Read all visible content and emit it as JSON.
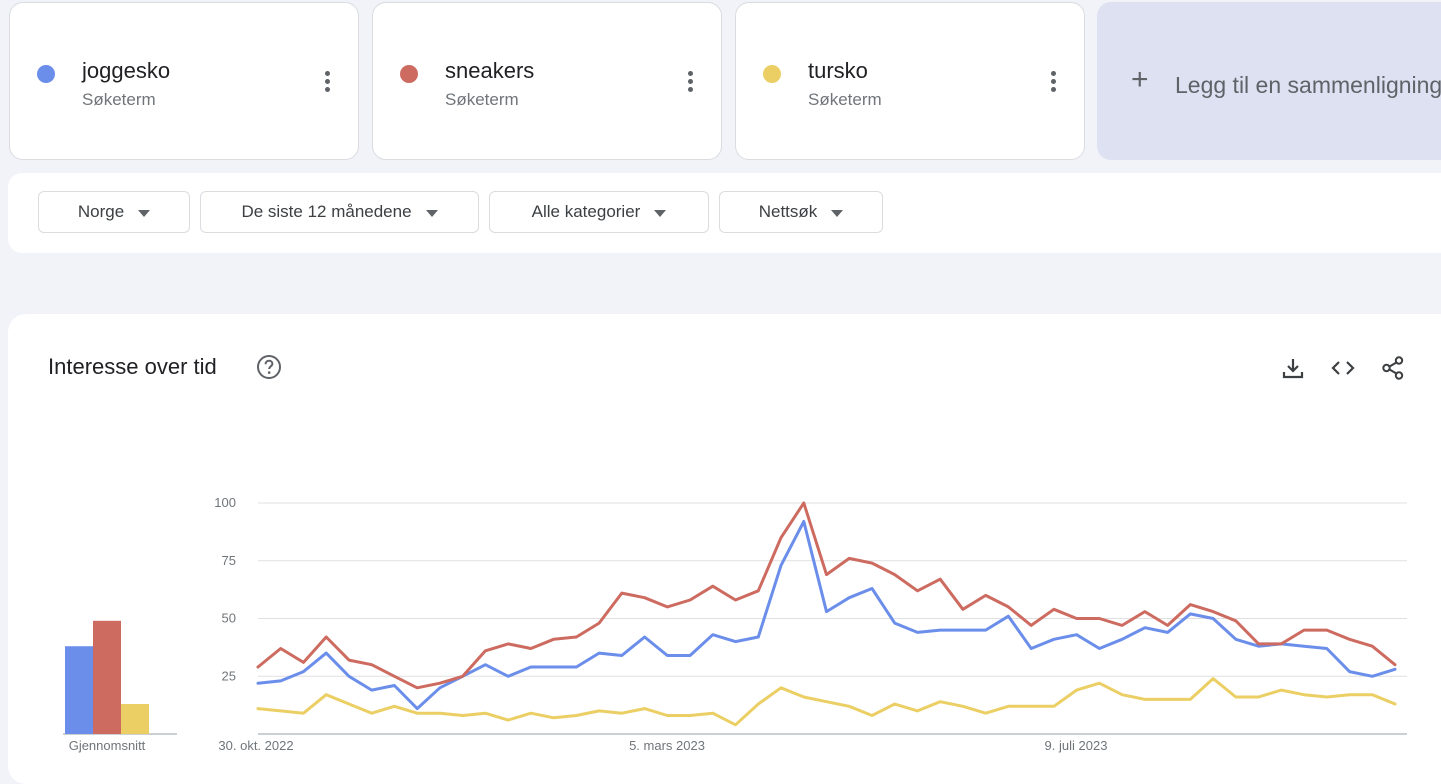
{
  "terms": [
    {
      "name": "joggesko",
      "type": "Søketerm",
      "color": "#6b8eeb"
    },
    {
      "name": "sneakers",
      "type": "Søketerm",
      "color": "#cd6b60"
    },
    {
      "name": "tursko",
      "type": "Søketerm",
      "color": "#ebcf64"
    }
  ],
  "add_comparison": {
    "icon": "plus-icon",
    "label": "Legg til en sammenligning"
  },
  "filters": [
    {
      "label": "Norge"
    },
    {
      "label": "De siste 12 månedene"
    },
    {
      "label": "Alle kategorier"
    },
    {
      "label": "Nettsøk"
    }
  ],
  "chart_header": {
    "title": "Interesse over tid",
    "icons": [
      "help-icon",
      "download-icon",
      "embed-code-icon",
      "share-icon"
    ]
  },
  "chart_data": {
    "type": "line",
    "x_labels": [
      "30. okt. 2022",
      "5. mars 2023",
      "9. juli 2023"
    ],
    "ylim": [
      0,
      100
    ],
    "y_ticks": [
      100,
      75,
      50,
      25
    ],
    "grid": true,
    "series": [
      {
        "name": "joggesko",
        "color": "#6b8eeb",
        "values": [
          22,
          23,
          27,
          35,
          25,
          19,
          21,
          11,
          20,
          25,
          30,
          25,
          29,
          29,
          29,
          35,
          34,
          42,
          34,
          34,
          43,
          40,
          42,
          73,
          92,
          53,
          59,
          63,
          48,
          44,
          45,
          45,
          45,
          51,
          37,
          41,
          43,
          37,
          41,
          46,
          44,
          52,
          50,
          41,
          38,
          39,
          38,
          37,
          27,
          25,
          28
        ]
      },
      {
        "name": "sneakers",
        "color": "#cd6b60",
        "values": [
          29,
          37,
          31,
          42,
          32,
          30,
          25,
          20,
          22,
          25,
          36,
          39,
          37,
          41,
          42,
          48,
          61,
          59,
          55,
          58,
          64,
          58,
          62,
          85,
          100,
          69,
          76,
          74,
          69,
          62,
          67,
          54,
          60,
          55,
          47,
          54,
          50,
          50,
          47,
          53,
          47,
          56,
          53,
          49,
          39,
          39,
          45,
          45,
          41,
          38,
          30
        ]
      },
      {
        "name": "tursko",
        "color": "#ebcf64",
        "values": [
          11,
          10,
          9,
          17,
          13,
          9,
          12,
          9,
          9,
          8,
          9,
          6,
          9,
          7,
          8,
          10,
          9,
          11,
          8,
          8,
          9,
          4,
          13,
          20,
          16,
          14,
          12,
          8,
          13,
          10,
          14,
          12,
          9,
          12,
          12,
          12,
          19,
          22,
          17,
          15,
          15,
          15,
          24,
          16,
          16,
          19,
          17,
          16,
          17,
          17,
          13
        ]
      }
    ],
    "average": {
      "label": "Gjennomsnitt",
      "values": [
        38,
        49,
        13
      ]
    }
  }
}
